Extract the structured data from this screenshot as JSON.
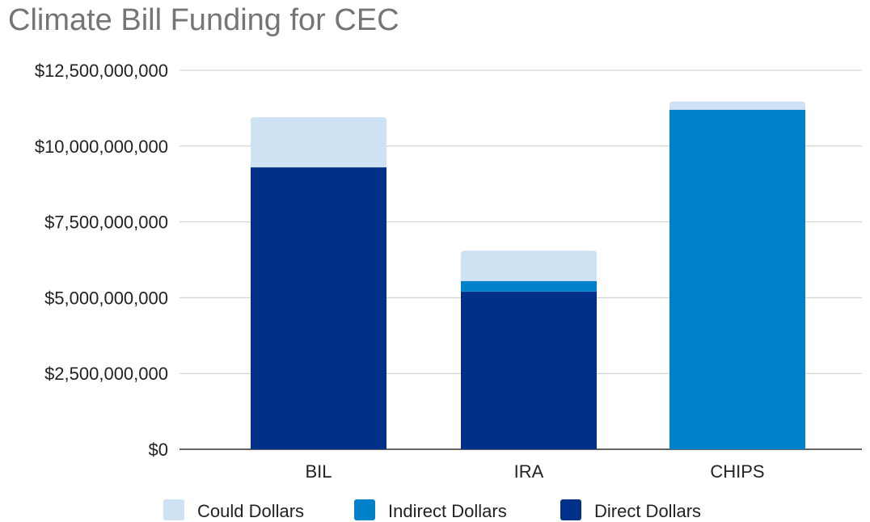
{
  "chart_data": {
    "type": "bar",
    "stacked": true,
    "title": "Climate Bill Funding for CEC",
    "xlabel": "",
    "ylabel": "",
    "categories": [
      "BIL",
      "IRA",
      "CHIPS"
    ],
    "series": [
      {
        "name": "Direct Dollars",
        "color": "#003087",
        "values": [
          9300000000,
          5200000000,
          0
        ]
      },
      {
        "name": "Indirect Dollars",
        "color": "#0082ca",
        "values": [
          0,
          350000000,
          11200000000
        ]
      },
      {
        "name": "Could Dollars",
        "color": "#cfe2f3",
        "values": [
          1650000000,
          1000000000,
          270000000
        ]
      }
    ],
    "ylim": [
      0,
      12500000000
    ],
    "yticks": [
      0,
      2500000000,
      5000000000,
      7500000000,
      10000000000,
      12500000000
    ],
    "ytick_labels": [
      "$0",
      "$2,500,000,000",
      "$5,000,000,000",
      "$7,500,000,000",
      "$10,000,000,000",
      "$12,500,000,000"
    ],
    "grid": true,
    "legend_position": "bottom",
    "legend_order": [
      "Could Dollars",
      "Indirect Dollars",
      "Direct Dollars"
    ]
  }
}
